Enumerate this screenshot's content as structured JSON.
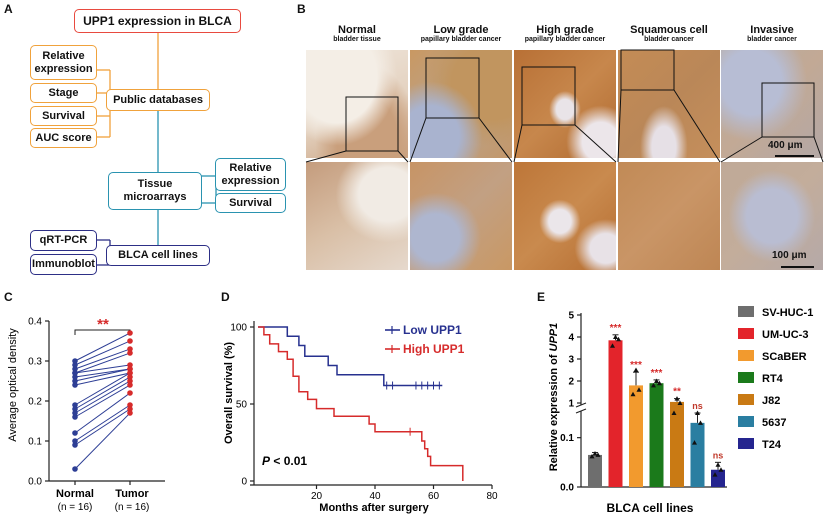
{
  "panelA": {
    "letter": "A",
    "title": "UPP1 expression in BLCA",
    "public_databases": "Public databases",
    "public_items": [
      "Relative expression",
      "Stage",
      "Survival",
      "AUC score"
    ],
    "tissue_microarrays": "Tissue microarrays",
    "tissue_items": [
      "Relative expression",
      "Survival"
    ],
    "cell_lines": "BLCA cell lines",
    "cell_items": [
      "qRT-PCR",
      "Immunoblot"
    ],
    "colors": {
      "title": "#e84a3f",
      "public": "#f0a23c",
      "tissue": "#2a93b0",
      "cells": "#2d2f86"
    }
  },
  "panelB": {
    "letter": "B",
    "headers": [
      {
        "title": "Normal",
        "sub": "bladder tissue"
      },
      {
        "title": "Low grade",
        "sub": "papillary bladder cancer"
      },
      {
        "title": "High grade",
        "sub": "papillary bladder cancer"
      },
      {
        "title": "Squamous cell",
        "sub": "bladder cancer"
      },
      {
        "title": "Invasive",
        "sub": "bladder cancer"
      }
    ],
    "scale_top": "400 μm",
    "scale_bottom": "100 μm"
  },
  "panelC": {
    "letter": "C",
    "ylabel": "Average optical density",
    "significance": "**",
    "groups": [
      "Normal",
      "Tumor"
    ],
    "group_n": [
      "(n = 16)",
      "(n = 16)"
    ],
    "yticks": [
      "0.0",
      "0.1",
      "0.2",
      "0.3",
      "0.4"
    ]
  },
  "panelD": {
    "letter": "D",
    "ylabel": "Overall survival (%)",
    "xlabel": "Months after surgery",
    "legend": [
      "Low UPP1",
      "High UPP1"
    ],
    "pvalue_p": "P",
    "pvalue_rest": " < 0.01",
    "xticks": [
      "20",
      "40",
      "60",
      "80"
    ],
    "yticks": [
      "0",
      "50",
      "100"
    ]
  },
  "panelE": {
    "letter": "E",
    "ylabel_prefix": "Relative expression of ",
    "ylabel_gene": "UPP1",
    "xlabel": "BLCA cell lines",
    "upper_ticks": [
      "1",
      "2",
      "3",
      "4",
      "5"
    ],
    "lower_ticks": [
      "0.0",
      "0.1"
    ],
    "legend": [
      "SV-HUC-1",
      "UM-UC-3",
      "SCaBER",
      "RT4",
      "J82",
      "5637",
      "T24"
    ],
    "sig_labels": [
      "***",
      "***",
      "***",
      "**",
      "ns",
      "ns"
    ]
  },
  "chart_data": [
    {
      "type": "scatter",
      "panel": "C",
      "title": "",
      "xlabel": "",
      "ylabel": "Average optical density",
      "categories": [
        "Normal",
        "Tumor"
      ],
      "ylim": [
        0.0,
        0.4
      ],
      "paired_values": [
        [
          0.3,
          0.37
        ],
        [
          0.29,
          0.35
        ],
        [
          0.28,
          0.33
        ],
        [
          0.27,
          0.32
        ],
        [
          0.27,
          0.29
        ],
        [
          0.26,
          0.28
        ],
        [
          0.25,
          0.28
        ],
        [
          0.24,
          0.27
        ],
        [
          0.19,
          0.27
        ],
        [
          0.18,
          0.26
        ],
        [
          0.17,
          0.25
        ],
        [
          0.16,
          0.24
        ],
        [
          0.12,
          0.22
        ],
        [
          0.1,
          0.19
        ],
        [
          0.09,
          0.18
        ],
        [
          0.03,
          0.17
        ]
      ],
      "significance": "**",
      "colors": {
        "Normal": "#2d3e95",
        "Tumor": "#d62b2b"
      }
    },
    {
      "type": "line",
      "panel": "D",
      "title": "",
      "xlabel": "Months after surgery",
      "ylabel": "Overall survival (%)",
      "xlim": [
        0,
        80
      ],
      "ylim": [
        0,
        100
      ],
      "series": [
        {
          "name": "Low UPP1",
          "color": "#27318f",
          "steps": [
            [
              0,
              100
            ],
            [
              10,
              100
            ],
            [
              10,
              94
            ],
            [
              14,
              94
            ],
            [
              14,
              88
            ],
            [
              16,
              88
            ],
            [
              16,
              81
            ],
            [
              24,
              81
            ],
            [
              24,
              75
            ],
            [
              27,
              75
            ],
            [
              27,
              69
            ],
            [
              43,
              69
            ],
            [
              43,
              62
            ],
            [
              63,
              62
            ]
          ],
          "censored": [
            [
              44,
              62
            ],
            [
              46,
              62
            ],
            [
              54,
              62
            ],
            [
              56,
              62
            ],
            [
              58,
              62
            ],
            [
              60,
              62
            ],
            [
              62,
              62
            ]
          ]
        },
        {
          "name": "High UPP1",
          "color": "#d62b2b",
          "steps": [
            [
              0,
              100
            ],
            [
              2,
              100
            ],
            [
              2,
              95
            ],
            [
              4,
              95
            ],
            [
              4,
              89
            ],
            [
              7,
              89
            ],
            [
              7,
              84
            ],
            [
              10,
              84
            ],
            [
              10,
              79
            ],
            [
              12,
              79
            ],
            [
              12,
              68
            ],
            [
              14,
              68
            ],
            [
              14,
              58
            ],
            [
              17,
              58
            ],
            [
              17,
              53
            ],
            [
              20,
              53
            ],
            [
              20,
              47
            ],
            [
              26,
              47
            ],
            [
              26,
              42
            ],
            [
              38,
              42
            ],
            [
              38,
              37
            ],
            [
              40,
              37
            ],
            [
              40,
              32
            ],
            [
              56,
              32
            ],
            [
              56,
              26
            ],
            [
              57,
              26
            ],
            [
              57,
              21
            ],
            [
              58,
              21
            ],
            [
              58,
              16
            ],
            [
              59,
              16
            ],
            [
              59,
              10
            ],
            [
              70,
              10
            ],
            [
              70,
              0
            ]
          ],
          "censored": [
            [
              52,
              32
            ]
          ]
        }
      ],
      "annotation": "P < 0.01"
    },
    {
      "type": "bar",
      "panel": "E",
      "title": "",
      "xlabel": "BLCA cell lines",
      "ylabel": "Relative expression of UPP1",
      "categories": [
        "SV-HUC-1",
        "UM-UC-3",
        "SCaBER",
        "RT4",
        "J82",
        "5637",
        "T24"
      ],
      "values": [
        0.065,
        3.85,
        1.8,
        1.9,
        1.05,
        0.13,
        0.035
      ],
      "errors": [
        0.005,
        0.25,
        0.6,
        0.15,
        0.15,
        0.04,
        0.015
      ],
      "points": [
        [
          0.062,
          0.068,
          0.065
        ],
        [
          3.6,
          4.0,
          3.9
        ],
        [
          1.4,
          2.5,
          1.6
        ],
        [
          1.8,
          2.0,
          1.9
        ],
        [
          0.95,
          1.2,
          1.0
        ],
        [
          0.09,
          0.17,
          0.13
        ],
        [
          0.025,
          0.045,
          0.035
        ]
      ],
      "significance": [
        "",
        "***",
        "***",
        "***",
        "**",
        "ns",
        "ns"
      ],
      "colors": [
        "#6e6e6e",
        "#e3242b",
        "#f29a2e",
        "#1b7a1b",
        "#c97a14",
        "#2a7ea1",
        "#25258f"
      ],
      "axis_break": {
        "lower_ylim": [
          0.0,
          0.15
        ],
        "upper_ylim": [
          1,
          5
        ]
      }
    }
  ]
}
